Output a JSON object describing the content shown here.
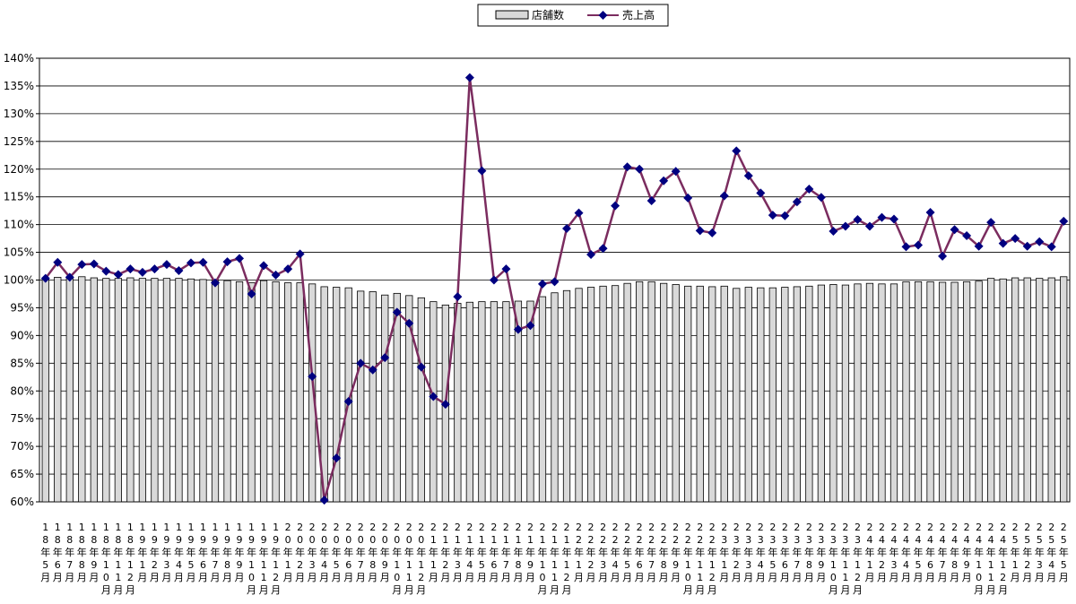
{
  "chart_data": {
    "type": "bar+line",
    "title": "",
    "xlabel": "",
    "ylabel": "",
    "ylim": [
      0.6,
      1.4
    ],
    "y_tick_labels": [
      "60%",
      "65%",
      "70%",
      "75%",
      "80%",
      "85%",
      "90%",
      "95%",
      "100%",
      "105%",
      "110%",
      "115%",
      "120%",
      "125%",
      "130%",
      "135%",
      "140%"
    ],
    "grid": "horizontal",
    "legend_position": "top-center",
    "colors": {
      "bar_fill": "#d9d9d9",
      "bar_stroke": "#000000",
      "line": "#7b2c5f",
      "marker": "#000080"
    },
    "x_labels": [
      "18年5月",
      "18年6月",
      "18年7月",
      "18年8月",
      "18年9月",
      "18年10月",
      "18年11月",
      "18年12月",
      "19年1月",
      "19年2月",
      "19年3月",
      "19年4月",
      "19年5月",
      "19年6月",
      "19年7月",
      "19年8月",
      "19年9月",
      "19年10月",
      "19年11月",
      "19年12月",
      "20年1月",
      "20年2月",
      "20年3月",
      "20年4月",
      "20年5月",
      "20年6月",
      "20年7月",
      "20年8月",
      "20年9月",
      "20年10月",
      "20年11月",
      "20年12月",
      "21年1月",
      "21年2月",
      "21年3月",
      "21年4月",
      "21年5月",
      "21年6月",
      "21年7月",
      "21年8月",
      "21年9月",
      "21年10月",
      "21年11月",
      "21年12月",
      "22年1月",
      "22年2月",
      "22年3月",
      "22年4月",
      "22年5月",
      "22年6月",
      "22年7月",
      "22年8月",
      "22年9月",
      "22年10月",
      "22年11月",
      "22年12月",
      "23年1月",
      "23年2月",
      "23年3月",
      "23年4月",
      "23年5月",
      "23年6月",
      "23年7月",
      "23年8月",
      "23年9月",
      "23年10月",
      "23年11月",
      "23年12月",
      "24年1月",
      "24年2月",
      "24年3月",
      "24年4月",
      "24年5月",
      "24年6月",
      "24年7月",
      "24年8月",
      "24年9月",
      "24年10月",
      "24年11月",
      "24年12月",
      "25年1月",
      "25年2月",
      "25年3月",
      "25年4月",
      "25年5月"
    ],
    "series": [
      {
        "name": "店舗数",
        "type": "bar",
        "values": [
          1.003,
          1.005,
          1.004,
          1.006,
          1.004,
          1.003,
          1.003,
          1.004,
          1.003,
          1.003,
          1.003,
          1.003,
          1.002,
          1.001,
          1.0,
          0.999,
          0.997,
          0.995,
          0.999,
          0.997,
          0.995,
          0.995,
          0.993,
          0.988,
          0.987,
          0.986,
          0.98,
          0.979,
          0.973,
          0.976,
          0.972,
          0.968,
          0.961,
          0.955,
          0.958,
          0.96,
          0.961,
          0.961,
          0.961,
          0.962,
          0.962,
          0.97,
          0.977,
          0.981,
          0.985,
          0.987,
          0.989,
          0.99,
          0.994,
          0.997,
          0.997,
          0.994,
          0.992,
          0.989,
          0.989,
          0.988,
          0.989,
          0.985,
          0.987,
          0.986,
          0.986,
          0.987,
          0.988,
          0.989,
          0.991,
          0.992,
          0.991,
          0.993,
          0.994,
          0.993,
          0.993,
          0.997,
          0.997,
          0.997,
          0.996,
          0.996,
          0.997,
          0.998,
          1.003,
          1.002,
          1.004,
          1.004,
          1.003,
          1.004,
          1.006
        ]
      },
      {
        "name": "売上高",
        "type": "line",
        "values": [
          1.003,
          1.032,
          1.005,
          1.028,
          1.029,
          1.016,
          1.01,
          1.02,
          1.014,
          1.02,
          1.028,
          1.017,
          1.031,
          1.032,
          0.995,
          1.033,
          1.039,
          0.975,
          1.026,
          1.009,
          1.02,
          1.047,
          0.826,
          0.603,
          0.679,
          0.781,
          0.85,
          0.838,
          0.86,
          0.942,
          0.922,
          0.843,
          0.79,
          0.776,
          0.97,
          1.365,
          1.197,
          1.0,
          1.02,
          0.911,
          0.918,
          0.993,
          0.997,
          1.093,
          1.121,
          1.046,
          1.057,
          1.134,
          1.204,
          1.2,
          1.143,
          1.179,
          1.196,
          1.148,
          1.089,
          1.085,
          1.152,
          1.233,
          1.188,
          1.157,
          1.117,
          1.116,
          1.141,
          1.164,
          1.149,
          1.088,
          1.097,
          1.109,
          1.097,
          1.113,
          1.11,
          1.06,
          1.063,
          1.122,
          1.043,
          1.091,
          1.08,
          1.061,
          1.104,
          1.066,
          1.075,
          1.061,
          1.069,
          1.06,
          1.106
        ]
      }
    ]
  }
}
